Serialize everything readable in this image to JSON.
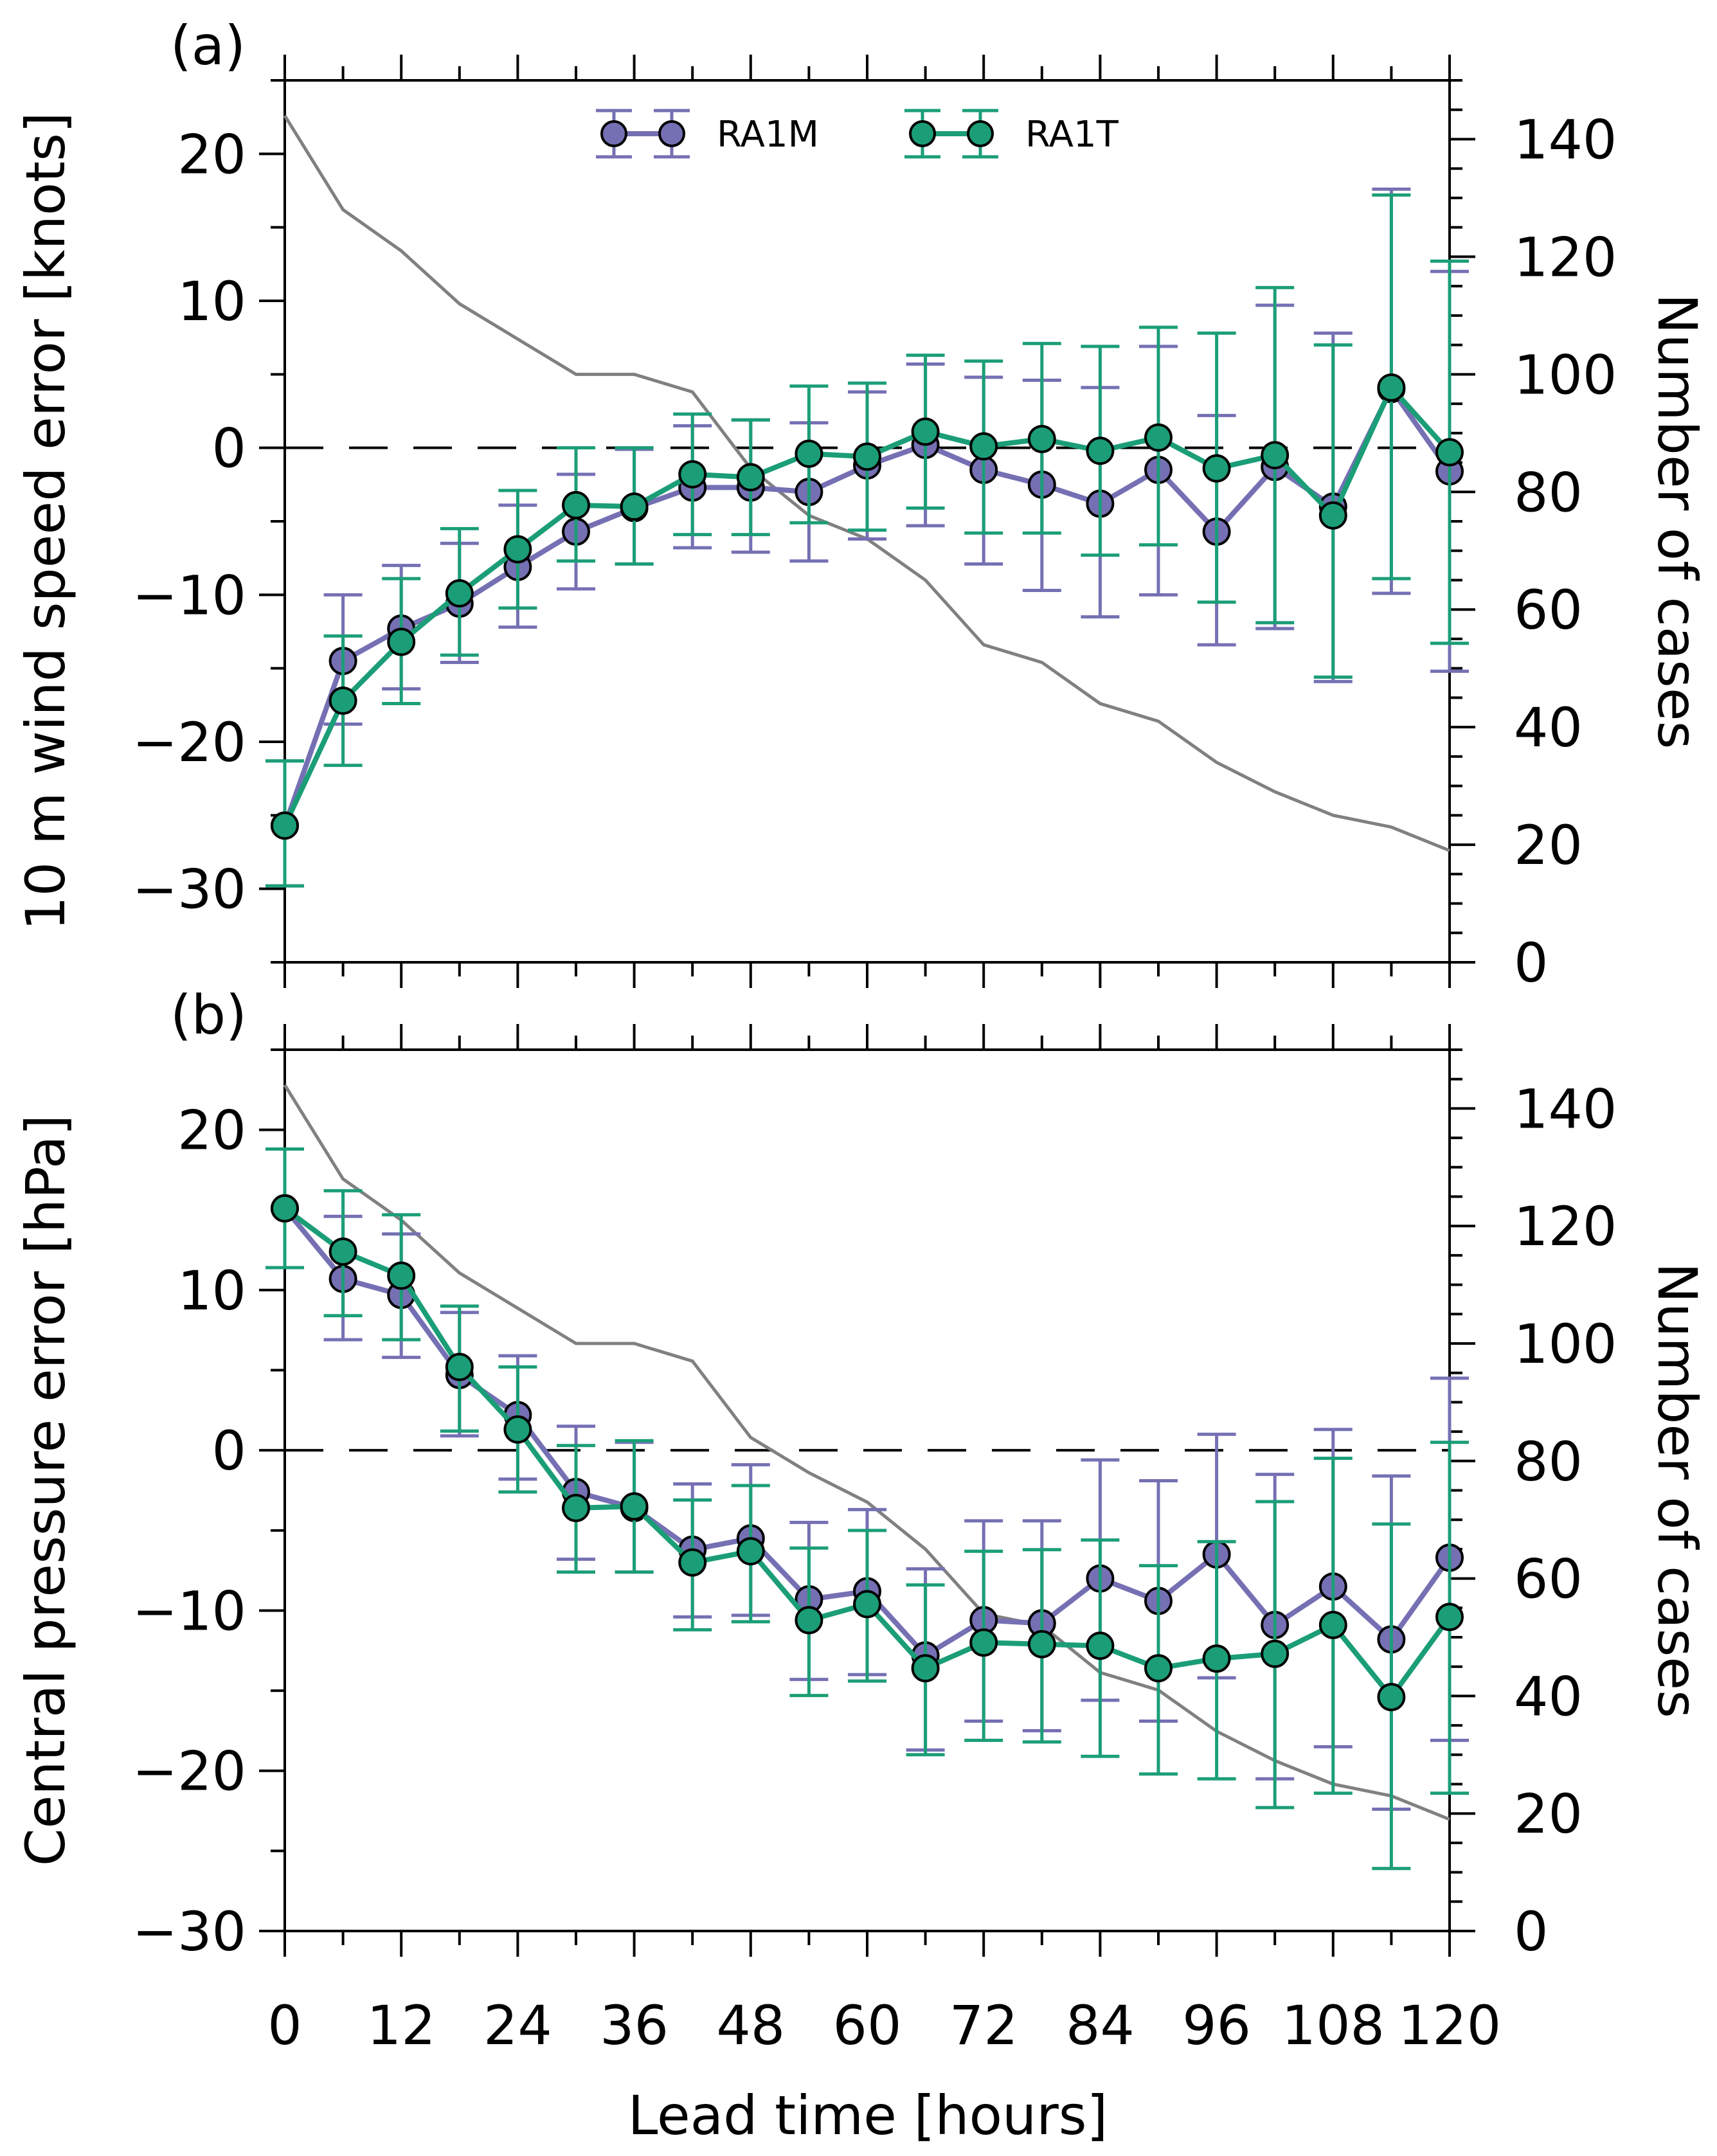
{
  "colors": {
    "RA1M": "#7570b3",
    "RA1T": "#1b9e77",
    "cases": "#808080"
  },
  "xlabel": "Lead time [hours]",
  "legend": [
    "RA1M",
    "RA1T"
  ],
  "chart_data": [
    {
      "type": "line",
      "panel_label": "(a)",
      "ylabel": "10 m wind speed error [knots]",
      "y2label": "Number of cases",
      "x": [
        0,
        6,
        12,
        18,
        24,
        30,
        36,
        42,
        48,
        54,
        60,
        66,
        72,
        78,
        84,
        90,
        96,
        102,
        108,
        114,
        120
      ],
      "xlim": [
        0,
        120
      ],
      "ylim": [
        -35,
        25
      ],
      "y2lim": [
        0,
        150
      ],
      "xticks": [
        0,
        12,
        24,
        36,
        48,
        60,
        72,
        84,
        96,
        108,
        120
      ],
      "yticks": [
        -30,
        -20,
        -10,
        0,
        10,
        20
      ],
      "y2ticks": [
        0,
        20,
        40,
        60,
        80,
        100,
        120,
        140
      ],
      "series": [
        {
          "name": "RA1M",
          "values": [
            -25.7,
            -14.5,
            -12.3,
            -10.6,
            -8.1,
            -5.7,
            -4.1,
            -2.7,
            -2.7,
            -3.0,
            -1.2,
            0.2,
            -1.5,
            -2.5,
            -3.8,
            -1.5,
            -5.7,
            -1.3,
            -4.0,
            4.0,
            -1.6
          ],
          "upper": [
            -21.3,
            -10.0,
            -8.0,
            -6.5,
            -3.9,
            -1.8,
            -0.1,
            1.5,
            1.9,
            1.7,
            3.8,
            5.7,
            4.8,
            4.6,
            4.1,
            6.9,
            2.2,
            9.7,
            7.8,
            17.6,
            12.0
          ],
          "lower": [
            -29.8,
            -18.8,
            -16.4,
            -14.6,
            -12.2,
            -9.6,
            -7.9,
            -6.8,
            -7.1,
            -7.7,
            -6.2,
            -5.3,
            -7.9,
            -9.7,
            -11.5,
            -10.0,
            -13.4,
            -12.3,
            -15.9,
            -9.9,
            -15.2
          ]
        },
        {
          "name": "RA1T",
          "values": [
            -25.7,
            -17.2,
            -13.2,
            -9.9,
            -6.9,
            -3.9,
            -4.0,
            -1.8,
            -2.0,
            -0.4,
            -0.6,
            1.1,
            0.1,
            0.6,
            -0.2,
            0.7,
            -1.4,
            -0.5,
            -4.6,
            4.1,
            -0.3
          ],
          "upper": [
            -21.3,
            -12.8,
            -8.9,
            -5.5,
            -2.9,
            0.0,
            0.0,
            2.3,
            1.9,
            4.2,
            4.4,
            6.3,
            5.9,
            7.1,
            6.9,
            8.2,
            7.8,
            10.9,
            7.0,
            17.2,
            12.7
          ],
          "lower": [
            -29.8,
            -21.6,
            -17.4,
            -14.1,
            -10.9,
            -7.7,
            -7.9,
            -5.9,
            -5.9,
            -5.1,
            -5.6,
            -4.1,
            -5.8,
            -5.8,
            -7.3,
            -6.6,
            -10.5,
            -11.9,
            -15.6,
            -8.9,
            -13.3
          ]
        }
      ],
      "cases": [
        144,
        128,
        121,
        112,
        106,
        100,
        100,
        97,
        84,
        76,
        72,
        65,
        54,
        51,
        44,
        41,
        34,
        29,
        25,
        23,
        19
      ]
    },
    {
      "type": "line",
      "panel_label": "(b)",
      "ylabel": "Central pressure error [hPa]",
      "y2label": "Number of cases",
      "x": [
        0,
        6,
        12,
        18,
        24,
        30,
        36,
        42,
        48,
        54,
        60,
        66,
        72,
        78,
        84,
        90,
        96,
        102,
        108,
        114,
        120
      ],
      "xlim": [
        0,
        120
      ],
      "ylim": [
        -30,
        25
      ],
      "y2lim": [
        0,
        150
      ],
      "xticks": [
        0,
        12,
        24,
        36,
        48,
        60,
        72,
        84,
        96,
        108,
        120
      ],
      "yticks": [
        -30,
        -20,
        -10,
        0,
        10,
        20
      ],
      "y2ticks": [
        0,
        20,
        40,
        60,
        80,
        100,
        120,
        140
      ],
      "series": [
        {
          "name": "RA1M",
          "values": [
            15.1,
            10.7,
            9.7,
            4.7,
            2.2,
            -2.6,
            -3.6,
            -6.2,
            -5.5,
            -9.3,
            -8.8,
            -12.8,
            -10.6,
            -10.8,
            -8.0,
            -9.4,
            -6.5,
            -10.9,
            -8.5,
            -11.8,
            -6.7
          ],
          "upper": [
            18.8,
            14.6,
            13.5,
            8.6,
            5.9,
            1.5,
            0.5,
            -2.1,
            -0.9,
            -4.5,
            -3.7,
            -7.4,
            -4.4,
            -4.4,
            -0.6,
            -1.9,
            1.0,
            -1.5,
            1.3,
            -1.6,
            4.5
          ],
          "lower": [
            11.4,
            6.9,
            5.8,
            0.9,
            -1.8,
            -6.8,
            -7.6,
            -10.4,
            -10.3,
            -14.3,
            -14.0,
            -18.7,
            -16.9,
            -17.5,
            -15.6,
            -16.9,
            -14.2,
            -20.5,
            -18.5,
            -22.4,
            -18.1
          ]
        },
        {
          "name": "RA1T",
          "values": [
            15.1,
            12.4,
            10.9,
            5.2,
            1.3,
            -3.6,
            -3.5,
            -7.0,
            -6.3,
            -10.6,
            -9.6,
            -13.6,
            -12.0,
            -12.1,
            -12.2,
            -13.6,
            -13.0,
            -12.7,
            -10.9,
            -15.4,
            -10.4
          ],
          "upper": [
            18.8,
            16.2,
            14.7,
            9.0,
            5.2,
            0.3,
            0.6,
            -3.1,
            -2.2,
            -6.1,
            -5.0,
            -8.4,
            -6.3,
            -6.2,
            -5.6,
            -7.2,
            -5.7,
            -3.2,
            -0.5,
            -4.6,
            0.5
          ],
          "lower": [
            11.4,
            8.4,
            6.9,
            1.2,
            -2.6,
            -7.6,
            -7.6,
            -11.2,
            -10.7,
            -15.3,
            -14.4,
            -19.0,
            -18.1,
            -18.2,
            -19.1,
            -20.2,
            -20.5,
            -22.3,
            -21.4,
            -26.1,
            -21.4
          ]
        }
      ],
      "cases": [
        144,
        128,
        121,
        112,
        106,
        100,
        100,
        97,
        84,
        78,
        73,
        65,
        54,
        52,
        44,
        41,
        34,
        29,
        25,
        23,
        19
      ]
    }
  ]
}
